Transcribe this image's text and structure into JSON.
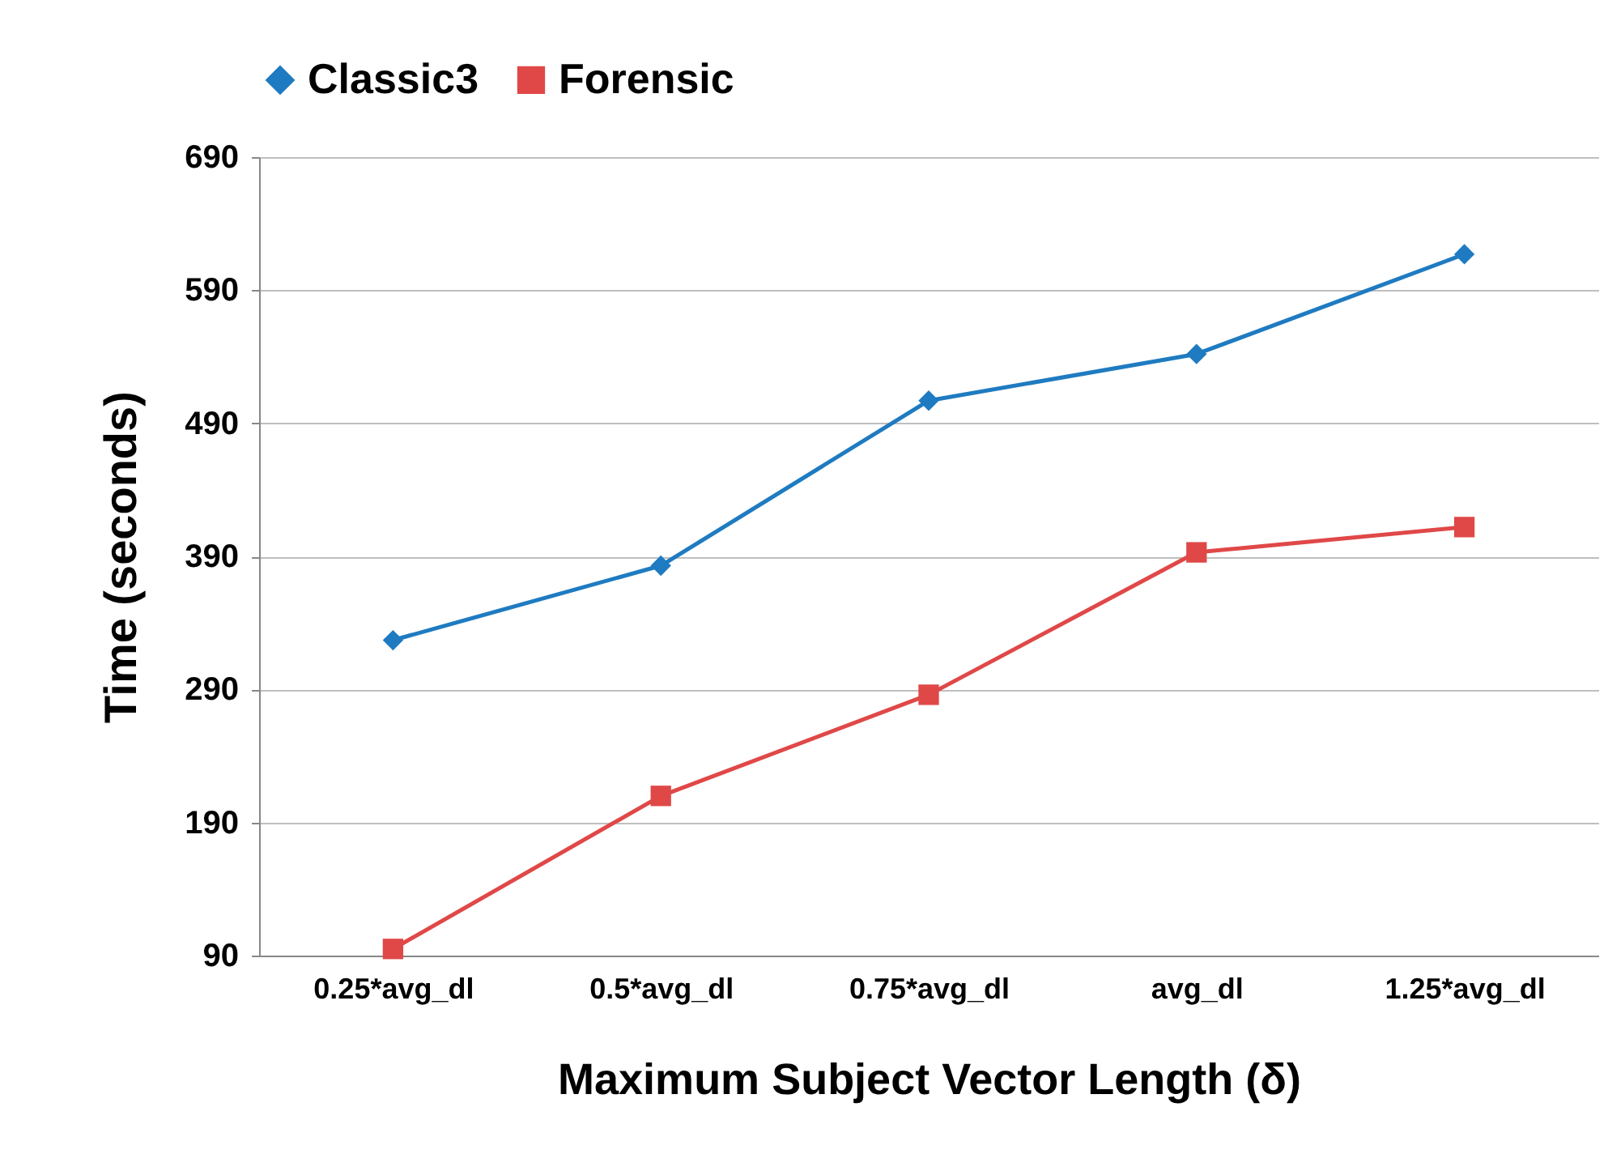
{
  "chart_data": {
    "type": "line",
    "xlabel": "Maximum Subject Vector Length (δ)",
    "ylabel": "Time (seconds)",
    "categories": [
      "0.25*avg_dl",
      "0.5*avg_dl",
      "0.75*avg_dl",
      "avg_dl",
      "1.25*avg_dl"
    ],
    "series": [
      {
        "name": "Classic3",
        "color": "#1f7bc1",
        "marker": "diamond",
        "values": [
          327,
          383,
          507,
          542,
          617
        ]
      },
      {
        "name": "Forensic",
        "color": "#e04848",
        "marker": "square",
        "values": [
          95,
          210,
          286,
          393,
          412
        ]
      }
    ],
    "ylim": [
      90,
      690
    ],
    "yticks": [
      90,
      190,
      290,
      390,
      490,
      590,
      690
    ],
    "grid": "y",
    "legend": "top",
    "line_style": "solid"
  }
}
